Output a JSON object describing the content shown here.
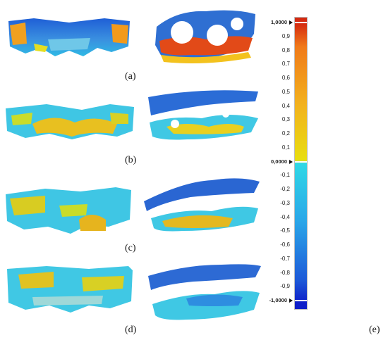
{
  "panels": {
    "a": "(a)",
    "b": "(b)",
    "c": "(c)",
    "d": "(d)",
    "e": "(e)"
  },
  "scale": {
    "ticks": [
      "1,0000",
      "0,9",
      "0,8",
      "0,7",
      "0,6",
      "0,5",
      "0,4",
      "0,3",
      "0,2",
      "0,1",
      "0,0000",
      "-0,1",
      "-0,2",
      "-0,3",
      "-0,4",
      "-0,5",
      "-0,6",
      "-0,7",
      "-0,8",
      "-0,9",
      "-1,0000"
    ],
    "colors": {
      "top": "#d42a10",
      "high": "#f07a1a",
      "mid_high": "#f2b21e",
      "zero_pos": "#e8de10",
      "zero_neg": "#30d8e6",
      "mid_low": "#2aa6e8",
      "low": "#1d5ad8",
      "bottom": "#0e1ec8"
    }
  }
}
